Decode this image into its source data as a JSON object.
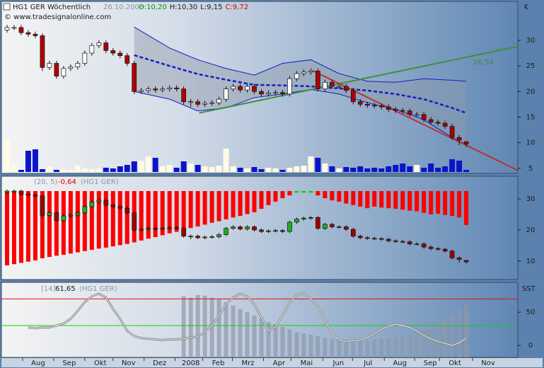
{
  "chart_data": [
    {
      "type": "candlestick",
      "title": "HG1 GER Wöchentlich",
      "date": "26.10.2008",
      "ohlc_labels": [
        {
          "text": "O:10,20",
          "color": "#00a000"
        },
        {
          "text": "H:10,30",
          "color": "#1a1a1a"
        },
        {
          "text": "L:9,15",
          "color": "#1a1a1a"
        },
        {
          "text": "C:9,72",
          "color": "#e00000"
        }
      ],
      "copyright": "© www.tradesignalonline.com",
      "unit": "€",
      "xlim": [
        -0.8,
        72.3
      ],
      "ylim": [
        4.0,
        37.6
      ],
      "yticks": [
        5,
        10,
        15,
        20,
        25,
        30
      ],
      "up_color": "#ffffff",
      "down_color": "#b00000",
      "open": [
        32.0,
        32.5,
        32.5,
        31.5,
        31.2,
        30.9,
        24.7,
        25.5,
        23,
        24.5,
        24.8,
        25.5,
        27.5,
        29,
        29.5,
        28,
        27.5,
        27,
        25.5,
        20,
        20.2,
        20.5,
        20.3,
        20.5,
        20.7,
        20.5,
        18,
        18,
        17.5,
        17.7,
        17.8,
        18.5,
        20.5,
        21,
        20.3,
        21,
        20,
        19.5,
        19.7,
        19.8,
        19.5,
        22.5,
        23.5,
        23.8,
        24,
        20.5,
        21.8,
        21,
        21,
        20.2,
        18,
        17.5,
        17.3,
        17.2,
        17,
        16.5,
        16.3,
        16.2,
        15.5,
        15.5,
        14.5,
        14,
        13.8,
        13.2,
        11,
        10.2
      ],
      "high": [
        33.0,
        33.0,
        33.0,
        32.0,
        31.7,
        31.4,
        26.0,
        26.0,
        25.0,
        25.3,
        26.0,
        28.0,
        29.5,
        30.0,
        30.0,
        28.5,
        28.0,
        27.5,
        26.0,
        20.7,
        21.0,
        21.0,
        21.0,
        21.2,
        21.2,
        21.0,
        18.5,
        18.5,
        18.2,
        18.3,
        19.0,
        21.0,
        21.5,
        21.5,
        21.5,
        21.5,
        20.5,
        20.2,
        20.3,
        20.3,
        23.0,
        24.0,
        24.3,
        24.5,
        24.5,
        22.3,
        22.3,
        21.5,
        21.5,
        20.7,
        18.5,
        18.0,
        17.8,
        17.7,
        17.5,
        17.0,
        16.8,
        16.7,
        16.0,
        16.0,
        15.0,
        14.5,
        14.3,
        13.7,
        11.5,
        10.3
      ],
      "low": [
        31.5,
        32.0,
        31.0,
        30.7,
        30.4,
        24.0,
        24.2,
        22.5,
        22.5,
        24.0,
        24.3,
        25.0,
        27.0,
        28.5,
        27.5,
        27.0,
        26.5,
        25.0,
        19.5,
        19.5,
        19.7,
        19.8,
        19.8,
        20.0,
        20.0,
        17.5,
        17.0,
        17.0,
        17.0,
        17.2,
        17.3,
        18.0,
        20.0,
        19.8,
        19.8,
        19.5,
        19.0,
        19.0,
        19.2,
        19.0,
        19.0,
        22.0,
        23.0,
        23.3,
        20.0,
        20.0,
        20.5,
        20.5,
        19.7,
        17.5,
        17.0,
        16.8,
        16.7,
        16.5,
        16.0,
        15.8,
        15.7,
        15.0,
        15.0,
        14.0,
        13.5,
        13.3,
        12.7,
        10.5,
        9.5,
        9.15
      ],
      "close": [
        32.5,
        32.5,
        31.5,
        31.2,
        30.9,
        24.7,
        25.5,
        23,
        24.5,
        24.8,
        25.5,
        27.5,
        29,
        29.5,
        28,
        27.5,
        27,
        25.5,
        20,
        20.2,
        20.5,
        20.3,
        20.5,
        20.7,
        20.5,
        18,
        18,
        17.5,
        17.7,
        17.8,
        18.5,
        20.5,
        21,
        20.3,
        21,
        20,
        19.5,
        19.7,
        19.8,
        19.5,
        22.5,
        23.5,
        23.8,
        24,
        20.5,
        21.8,
        21,
        21,
        20.2,
        18,
        17.5,
        17.3,
        17.2,
        17,
        16.5,
        16.3,
        16.2,
        15.5,
        15.5,
        14.5,
        14,
        13.8,
        13.2,
        11,
        10.5,
        9.72
      ],
      "volume": [
        47,
        10,
        3,
        30,
        32,
        4,
        7,
        3,
        4,
        3,
        9,
        5,
        4,
        5,
        6,
        5,
        8,
        10,
        15,
        16,
        22,
        20,
        8,
        10,
        6,
        15,
        12,
        10,
        8,
        7,
        9,
        33,
        8,
        6,
        5,
        7,
        4,
        6,
        5,
        3,
        6,
        8,
        9,
        22,
        20,
        12,
        8,
        5,
        7,
        6,
        8,
        5,
        6,
        5,
        8,
        10,
        12,
        8,
        10,
        6,
        12,
        6,
        8,
        18,
        16,
        3
      ],
      "volume_up_color": "#fffbe6",
      "volume_down_color": "#0a14c8",
      "band": {
        "x": [
          18,
          23,
          27,
          31,
          35,
          39,
          43,
          47,
          51,
          55,
          59,
          63,
          65
        ],
        "upper": [
          32.6,
          28.5,
          26.2,
          24.5,
          23.2,
          25.5,
          26.2,
          23.5,
          22.0,
          21.8,
          22.5,
          22.2,
          22.0
        ],
        "mid": [
          27.1,
          25,
          23.4,
          22.3,
          21.3,
          21.2,
          21,
          20.6,
          20.2,
          19.5,
          18.5,
          16.8,
          15.8
        ],
        "lower": [
          20,
          18.5,
          16.2,
          16.8,
          18.8,
          19.5,
          20.4,
          19.5,
          17.8,
          16.5,
          14.5,
          11,
          9.6
        ],
        "line_color": "#1020c0",
        "fill_color": "#8f9aa8"
      },
      "trendlines": [
        {
          "x": [
            27.2,
            72.3
          ],
          "values": [
            15.8,
            28.8
          ],
          "color": "#3f8f3f"
        },
        {
          "x": [
            43.2,
            72.3
          ],
          "values": [
            24.1,
            4.6
          ],
          "color": "#c03030"
        }
      ],
      "annotation": "26,54"
    },
    {
      "type": "candlestick",
      "params": "(20, 5)",
      "value_label": "-0,64",
      "symbol": "(HG1 GER)",
      "ylim": [
        4.5,
        32.5
      ],
      "yticks": [
        10,
        20,
        30
      ],
      "up_color": "#20b020",
      "down_color": "#a00000",
      "series": [
        {
          "color": "#ff0000",
          "values": [
            8.6,
            9.0,
            9.4,
            9.8,
            10.2,
            10.9,
            11.3,
            11.7,
            12.0,
            12.4,
            12.8,
            13.2,
            13.6,
            14.0,
            14.3,
            14.7,
            15.1,
            15.5,
            16.0,
            16.6,
            17.2,
            17.7,
            18.3,
            18.9,
            19.4,
            20.0,
            20.6,
            21.1,
            21.7,
            22.3,
            22.8,
            23.4,
            24.0,
            24.5,
            25.1,
            25.7,
            26.8,
            28.0,
            29.1,
            30.2,
            31.1,
            null,
            null,
            null,
            31.1,
            30.2,
            29.5,
            29.1,
            28.5,
            28.0,
            27.5,
            27.0,
            27.5,
            27.2,
            27.0,
            26.8,
            26.5,
            26.2,
            26.0,
            25.5,
            25.0,
            25.2,
            24.8,
            24.5,
            24.0,
            21.6
          ]
        },
        {
          "color": "#00d000",
          "values": [
            null,
            null,
            null,
            null,
            null,
            null,
            null,
            null,
            null,
            null,
            null,
            null,
            null,
            null,
            null,
            null,
            null,
            null,
            null,
            null,
            null,
            null,
            null,
            null,
            null,
            null,
            null,
            null,
            null,
            null,
            null,
            null,
            null,
            null,
            null,
            null,
            null,
            null,
            null,
            null,
            null,
            32.0,
            32.0,
            32.0,
            null,
            null,
            null,
            null,
            null,
            null,
            null,
            null,
            null,
            null,
            null,
            null,
            null,
            null,
            null,
            null,
            null,
            null,
            null,
            null,
            null,
            null
          ]
        }
      ]
    },
    {
      "type": "line",
      "params": "[14]",
      "value_label": "61,65",
      "symbol": "(HG1 GER)",
      "scale_label": "SST",
      "ylim": [
        -18,
        96
      ],
      "yticks": [
        0,
        50
      ],
      "levels": [
        {
          "value": 70,
          "color": "#e01010"
        },
        {
          "value": 30,
          "color": "#10d010"
        }
      ],
      "line_color": "#8a8a8a",
      "bar_color": "#8e99aa",
      "values": [
        null,
        null,
        null,
        27,
        26,
        27,
        27,
        30,
        33,
        40,
        52,
        65,
        74,
        78,
        72,
        55,
        40,
        22,
        14,
        11,
        10,
        9,
        8,
        9,
        9,
        10,
        12,
        13,
        20,
        30,
        45,
        62,
        72,
        78,
        74,
        62,
        42,
        22,
        28,
        45,
        65,
        76,
        78,
        70,
        58,
        38,
        18,
        8,
        6,
        7,
        8,
        12,
        18,
        24,
        29,
        32,
        30,
        27,
        22,
        15,
        10,
        6,
        3,
        0,
        4,
        11
      ],
      "bars": [
        null,
        null,
        null,
        null,
        null,
        null,
        null,
        null,
        null,
        null,
        null,
        null,
        null,
        null,
        null,
        null,
        null,
        null,
        null,
        null,
        null,
        null,
        null,
        null,
        null,
        74,
        72,
        76,
        75,
        72,
        70,
        65,
        60,
        55,
        50,
        45,
        40,
        35,
        32,
        28,
        24,
        20,
        18,
        16,
        14,
        12,
        10,
        9,
        8,
        8,
        8,
        8,
        9,
        10,
        11,
        12,
        14,
        16,
        18,
        22,
        28,
        32,
        38,
        46,
        55,
        61.65
      ],
      "xticks": [
        {
          "value": 4.4,
          "label": "Aug"
        },
        {
          "value": 8.8,
          "label": "Sep"
        },
        {
          "value": 13.2,
          "label": "Okt"
        },
        {
          "value": 17.2,
          "label": "Nov"
        },
        {
          "value": 21.6,
          "label": "Dez"
        },
        {
          "value": 26,
          "label": "2008"
        },
        {
          "value": 29.9,
          "label": "Feb"
        },
        {
          "value": 34.1,
          "label": "Mrz"
        },
        {
          "value": 38.5,
          "label": "Apr"
        },
        {
          "value": 42.4,
          "label": "Mai"
        },
        {
          "value": 46.9,
          "label": "Jun"
        },
        {
          "value": 51.1,
          "label": "Jul"
        },
        {
          "value": 55.6,
          "label": "Aug"
        },
        {
          "value": 59.9,
          "label": "Sep"
        },
        {
          "value": 63.4,
          "label": "Okt"
        },
        {
          "value": 68.1,
          "label": "Nov"
        }
      ]
    }
  ]
}
